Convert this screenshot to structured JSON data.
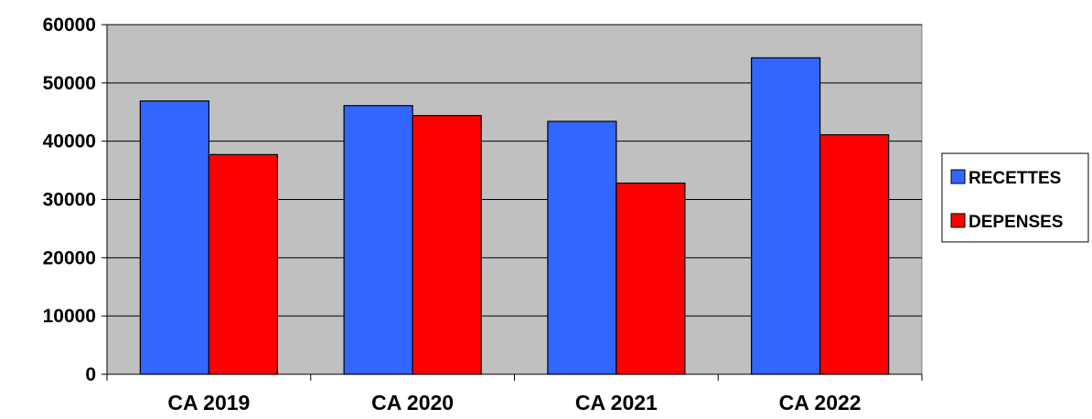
{
  "chart_data": {
    "type": "bar",
    "title": "",
    "xlabel": "",
    "ylabel": "",
    "categories": [
      "CA 2019",
      "CA 2020",
      "CA 2021",
      "CA 2022"
    ],
    "series": [
      {
        "name": "RECETTES",
        "color": "#3366FF",
        "values": [
          46900,
          46100,
          43400,
          54300
        ]
      },
      {
        "name": "DEPENSES",
        "color": "#FF0000",
        "values": [
          37700,
          44400,
          32800,
          41100
        ]
      }
    ],
    "ylim": [
      0,
      60000
    ],
    "yticks": [
      0,
      10000,
      20000,
      30000,
      40000,
      50000,
      60000
    ],
    "ytick_labels": [
      "0",
      "10000",
      "20000",
      "30000",
      "40000",
      "50000",
      "60000"
    ],
    "grid": true,
    "plot_background": "#C0C0C0",
    "legend": {
      "position": "right",
      "entries": [
        "RECETTES",
        "DEPENSES"
      ]
    }
  }
}
